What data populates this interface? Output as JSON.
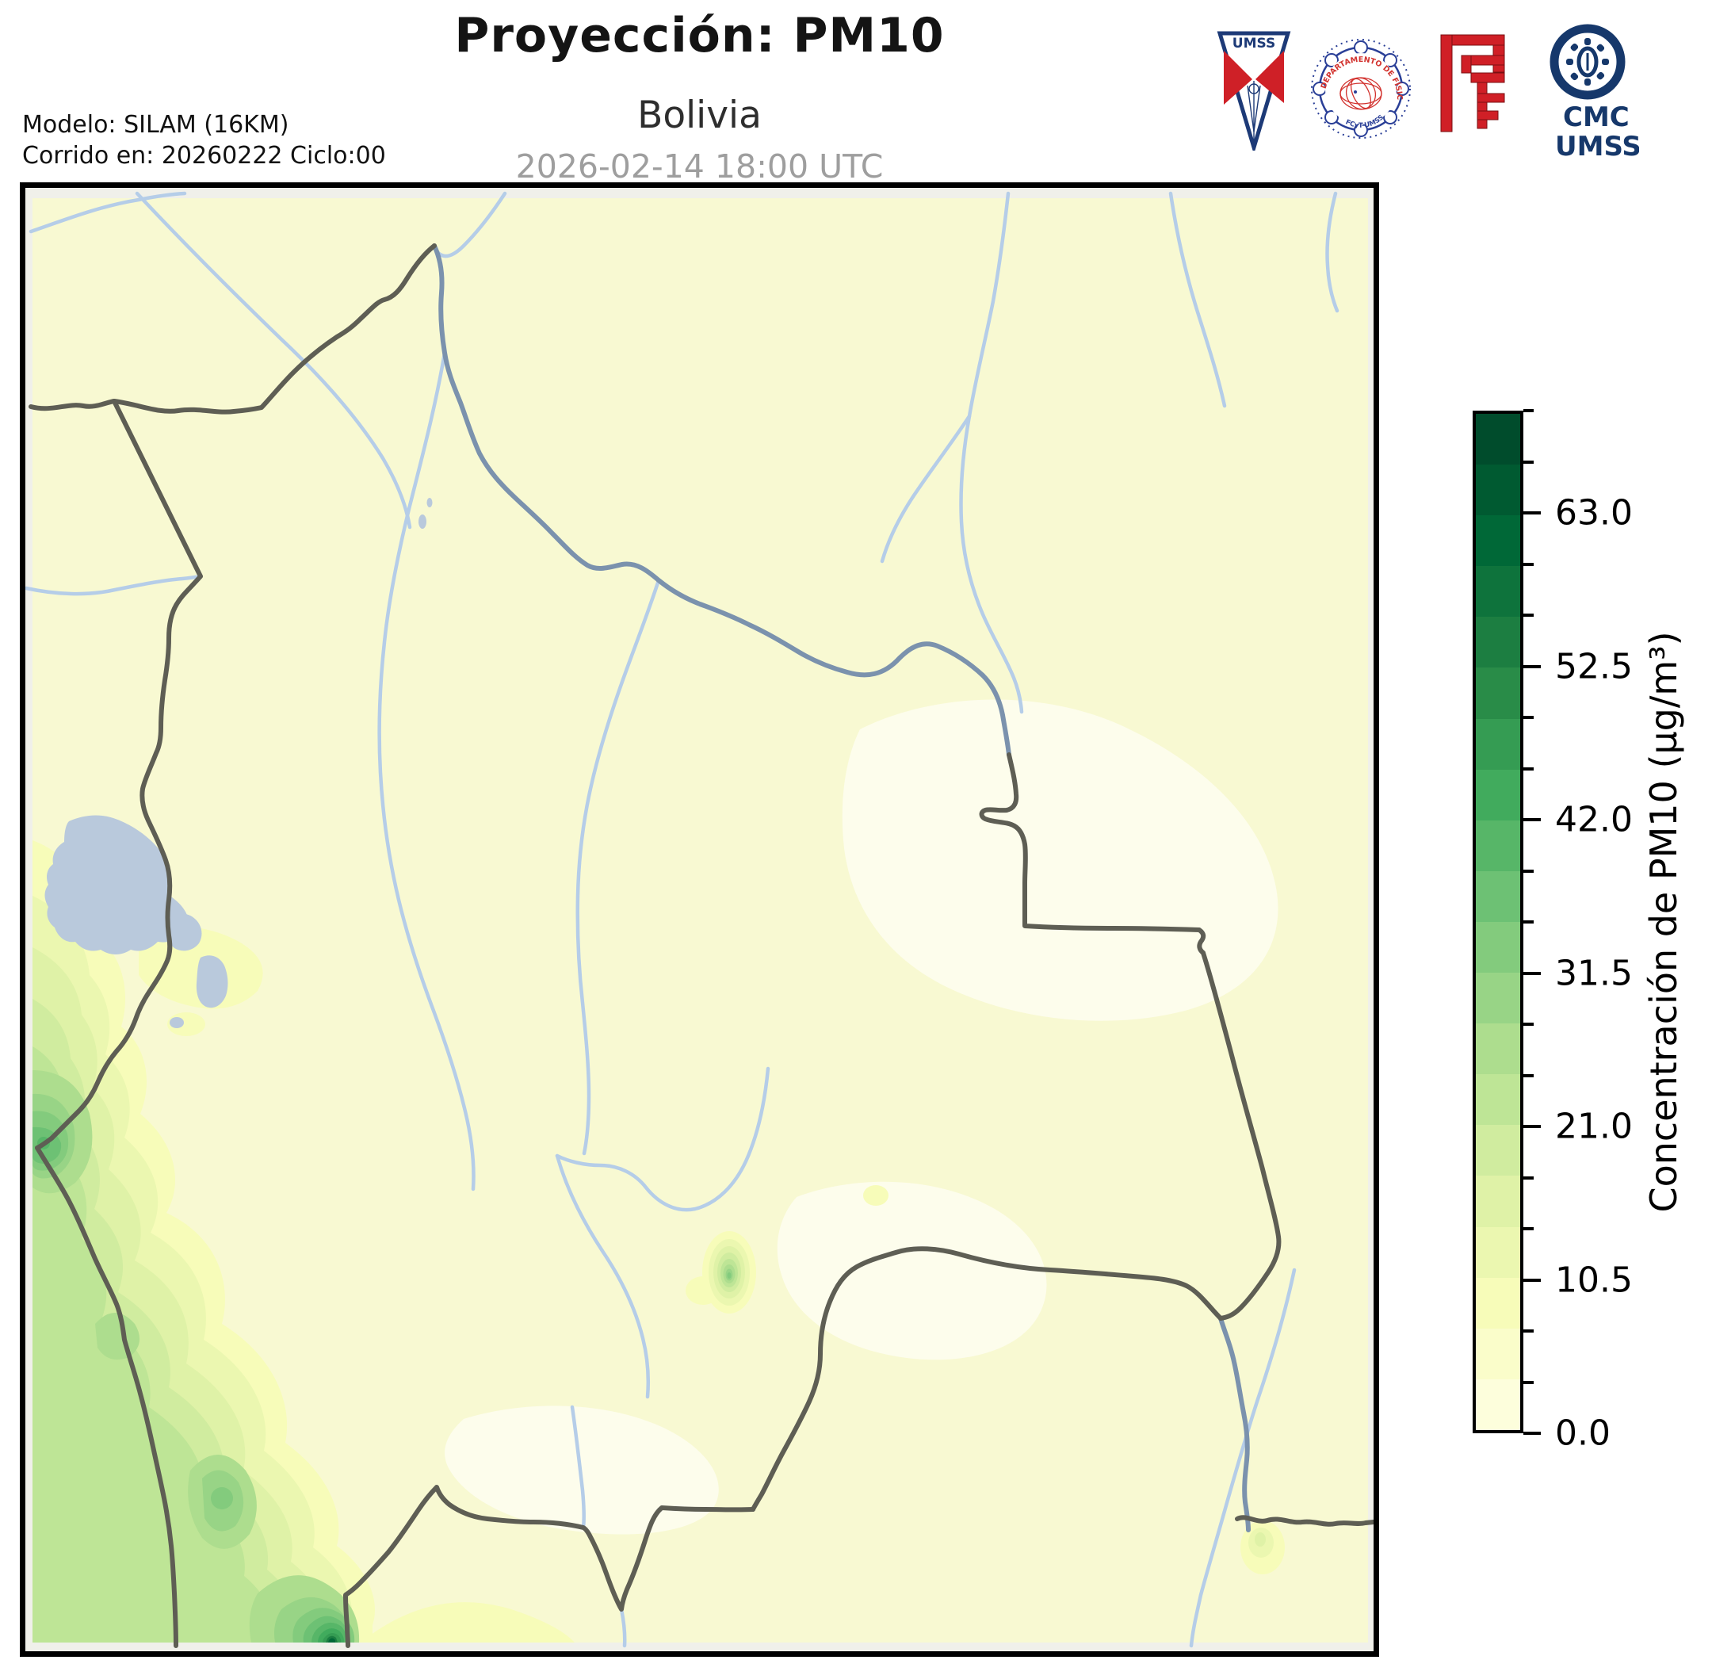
{
  "header": {
    "title": "Proyección: PM10",
    "subtitle": "Bolivia",
    "timestamp": "2026-02-14 18:00 UTC",
    "model_line1": "Modelo: SILAM (16KM)",
    "model_line2": "Corrido en: 20260222 Ciclo:00"
  },
  "logos": {
    "umss_label": "UMSS",
    "physics_seal_top": "DEPARTAMENTO DE FÍSICA",
    "physics_seal_bottom": "FCyT-UMSS",
    "cmc_line1": "CMC",
    "cmc_line2": "UMSS",
    "navy": "#1d3a77",
    "red": "#cf2027"
  },
  "colorbar": {
    "label": "Concentración de PM10 (µg/m³)",
    "min": 0,
    "max": 70,
    "step": 3.5,
    "major_tick_step": 10.5,
    "tick_labels": [
      "0.0",
      "10.5",
      "21.0",
      "31.5",
      "42.0",
      "52.5",
      "63.0"
    ],
    "segment_colors": [
      "#fdfedc",
      "#fafdca",
      "#f7fcb9",
      "#ebf7b0",
      "#dff2a7",
      "#d0ec9f",
      "#bee596",
      "#addd8e",
      "#98d486",
      "#83cb7d",
      "#6dc174",
      "#57b668",
      "#41ab5d",
      "#359c53",
      "#298c48",
      "#1c7e41",
      "#0e733c",
      "#006837",
      "#005a31",
      "#004c2c"
    ]
  },
  "map": {
    "region": "Bolivia",
    "colors": {
      "background": "#f8f9d2",
      "low_patch": "#fdfdec",
      "off_domain_margin": "#f0f0ea",
      "river": "#b5cde8",
      "border_river": "#7b92ad",
      "country_border": "#5e5e54",
      "lake": "#b9c9dc",
      "frame": "#000000"
    }
  },
  "chart_data": {
    "type": "heatmap",
    "title": "Proyección: PM10 — Bolivia — 2026-02-14 18:00 UTC",
    "variable": "Concentración de PM10",
    "units": "µg/m³",
    "colormap": "YlGn (20 discrete levels)",
    "levels_range": [
      0,
      70
    ],
    "level_step": 3.5,
    "colorbar_major_ticks": [
      0.0,
      10.5,
      21.0,
      31.5,
      42.0,
      52.5,
      63.0
    ],
    "legend_position": "right vertical colorbar",
    "features": [
      {
        "area": "southwest Andes band along Chile/Peru border",
        "approx_values": "7–45"
      },
      {
        "area": "hotspot at south-west near bottom edge",
        "approx_peak": 66
      },
      {
        "area": "local hotspot near La Paz / Titicaca west edge",
        "approx_peak": 40
      },
      {
        "area": "small isolated spot center (Santa Cruz lowlands)",
        "approx_peak": 30
      },
      {
        "area": "faint spot south-east near Paraguay river",
        "approx_peak": 12
      },
      {
        "area": "rest of Bolivia lowlands",
        "approx_values": "0–7"
      }
    ]
  }
}
